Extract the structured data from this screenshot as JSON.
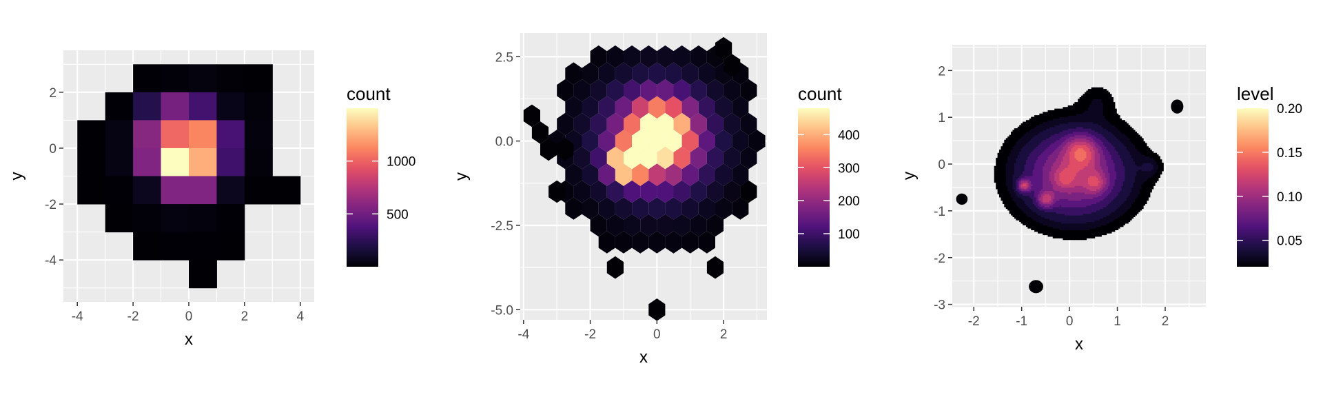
{
  "chart_data": [
    {
      "id": "bin2d",
      "type": "heatmap",
      "xlabel": "x",
      "ylabel": "y",
      "xlim": [
        -4.5,
        4.5
      ],
      "ylim": [
        -5.5,
        3.5
      ],
      "xticks": [
        -4,
        -2,
        0,
        2,
        4
      ],
      "xtick_labels": [
        "-4",
        "-2",
        "0",
        "2",
        "4"
      ],
      "yticks": [
        -4,
        -2,
        0,
        2
      ],
      "ytick_labels": [
        "-4",
        "-2",
        "0",
        "2"
      ],
      "grid": true,
      "legend_position": "right",
      "legend": {
        "title": "count",
        "min": 0,
        "max": 1500,
        "ticks": [
          500,
          1000
        ],
        "tick_labels": [
          "500",
          "1000"
        ]
      },
      "bin_width": 1,
      "bin_height": 1,
      "cells": [
        {
          "x": -1.5,
          "y": 2.5,
          "count": 5
        },
        {
          "x": -0.5,
          "y": 2.5,
          "count": 15
        },
        {
          "x": 0.5,
          "y": 2.5,
          "count": 30
        },
        {
          "x": 1.5,
          "y": 2.5,
          "count": 10
        },
        {
          "x": 2.5,
          "y": 2.5,
          "count": 3
        },
        {
          "x": -2.5,
          "y": 1.5,
          "count": 5
        },
        {
          "x": -1.5,
          "y": 1.5,
          "count": 220
        },
        {
          "x": -0.5,
          "y": 1.5,
          "count": 520
        },
        {
          "x": 0.5,
          "y": 1.5,
          "count": 330
        },
        {
          "x": 1.5,
          "y": 1.5,
          "count": 60
        },
        {
          "x": 2.5,
          "y": 1.5,
          "count": 20
        },
        {
          "x": -3.5,
          "y": 0.5,
          "count": 3
        },
        {
          "x": -2.5,
          "y": 0.5,
          "count": 40
        },
        {
          "x": -1.5,
          "y": 0.5,
          "count": 580
        },
        {
          "x": -0.5,
          "y": 0.5,
          "count": 1020
        },
        {
          "x": 0.5,
          "y": 0.5,
          "count": 1120
        },
        {
          "x": 1.5,
          "y": 0.5,
          "count": 350
        },
        {
          "x": 2.5,
          "y": 0.5,
          "count": 25
        },
        {
          "x": -3.5,
          "y": -0.5,
          "count": 3
        },
        {
          "x": -2.5,
          "y": -0.5,
          "count": 40
        },
        {
          "x": -1.5,
          "y": -0.5,
          "count": 560
        },
        {
          "x": -0.5,
          "y": -0.5,
          "count": 1500
        },
        {
          "x": 0.5,
          "y": -0.5,
          "count": 1250
        },
        {
          "x": 1.5,
          "y": -0.5,
          "count": 320
        },
        {
          "x": 2.5,
          "y": -0.5,
          "count": 20
        },
        {
          "x": -3.5,
          "y": -1.5,
          "count": 3
        },
        {
          "x": -2.5,
          "y": -1.5,
          "count": 5
        },
        {
          "x": -1.5,
          "y": -1.5,
          "count": 80
        },
        {
          "x": -0.5,
          "y": -1.5,
          "count": 560
        },
        {
          "x": 0.5,
          "y": -1.5,
          "count": 560
        },
        {
          "x": 1.5,
          "y": -1.5,
          "count": 80
        },
        {
          "x": 2.5,
          "y": -1.5,
          "count": 3
        },
        {
          "x": 3.5,
          "y": -1.5,
          "count": 3
        },
        {
          "x": -2.5,
          "y": -2.5,
          "count": 3
        },
        {
          "x": -1.5,
          "y": -2.5,
          "count": 15
        },
        {
          "x": -0.5,
          "y": -2.5,
          "count": 35
        },
        {
          "x": 0.5,
          "y": -2.5,
          "count": 25
        },
        {
          "x": 1.5,
          "y": -2.5,
          "count": 5
        },
        {
          "x": -1.5,
          "y": -3.5,
          "count": 3
        },
        {
          "x": -0.5,
          "y": -3.5,
          "count": 5
        },
        {
          "x": 0.5,
          "y": -3.5,
          "count": 5
        },
        {
          "x": 1.5,
          "y": -3.5,
          "count": 3
        },
        {
          "x": 0.5,
          "y": -4.5,
          "count": 2
        }
      ]
    },
    {
      "id": "hex",
      "type": "heatmap",
      "xlabel": "x",
      "ylabel": "y",
      "xlim": [
        -4.1,
        3.3
      ],
      "ylim": [
        -5.3,
        3.2
      ],
      "xticks": [
        -4,
        -2,
        0,
        2
      ],
      "xtick_labels": [
        "-4",
        "-2",
        "0",
        "2"
      ],
      "yticks": [
        -5,
        -2.5,
        0,
        2.5
      ],
      "ytick_labels": [
        "-5.0",
        "-2.5",
        "0.0",
        "2.5"
      ],
      "grid": true,
      "legend_position": "right",
      "legend": {
        "title": "count",
        "min": 0,
        "max": 480,
        "ticks": [
          100,
          200,
          300,
          400
        ],
        "tick_labels": [
          "100",
          "200",
          "300",
          "400"
        ]
      },
      "hex_dx": 0.5,
      "hex_dy": 0.5,
      "max_radius": 3.1,
      "isolated_hexes": [
        {
          "x": 2.0,
          "y": 2.75,
          "count": 2
        },
        {
          "x": 2.25,
          "y": 2.25,
          "count": 2
        },
        {
          "x": -3.75,
          "y": 0.75,
          "count": 2
        },
        {
          "x": -3.5,
          "y": 0.25,
          "count": 2
        },
        {
          "x": -3.25,
          "y": -0.25,
          "count": 2
        },
        {
          "x": -3.0,
          "y": -1.5,
          "count": 2
        },
        {
          "x": -1.25,
          "y": -3.75,
          "count": 2
        },
        {
          "x": 1.75,
          "y": -3.75,
          "count": 2
        },
        {
          "x": 0.0,
          "y": -5.0,
          "count": 2
        },
        {
          "x": 2.75,
          "y": -1.5,
          "count": 2
        },
        {
          "x": -2.75,
          "y": -0.25,
          "count": 2
        }
      ]
    },
    {
      "id": "density",
      "type": "heatmap",
      "xlabel": "x",
      "ylabel": "y",
      "xlim": [
        -2.45,
        2.85
      ],
      "ylim": [
        -3.05,
        2.55
      ],
      "xticks": [
        -2,
        -1,
        0,
        1,
        2
      ],
      "xtick_labels": [
        "-2",
        "-1",
        "0",
        "1",
        "2"
      ],
      "yticks": [
        -3,
        -2,
        -1,
        0,
        1,
        2
      ],
      "ytick_labels": [
        "-3",
        "-2",
        "-1",
        "0",
        "1",
        "2"
      ],
      "grid": true,
      "legend_position": "right",
      "legend": {
        "title": "level",
        "min": 0.02,
        "max": 0.2,
        "ticks": [
          0.05,
          0.1,
          0.15,
          0.2
        ],
        "tick_labels": [
          "0.05",
          "0.10",
          "0.15",
          "0.20"
        ]
      },
      "peaks": [
        {
          "x": 0.18,
          "y": 0.2,
          "w": 0.2
        },
        {
          "x": -0.95,
          "y": -0.45,
          "w": 0.07
        },
        {
          "x": -0.5,
          "y": -0.75,
          "w": 0.06
        },
        {
          "x": 0.55,
          "y": -0.4,
          "w": 0.05
        },
        {
          "x": -0.1,
          "y": -0.3,
          "w": 0.05
        }
      ]
    }
  ]
}
